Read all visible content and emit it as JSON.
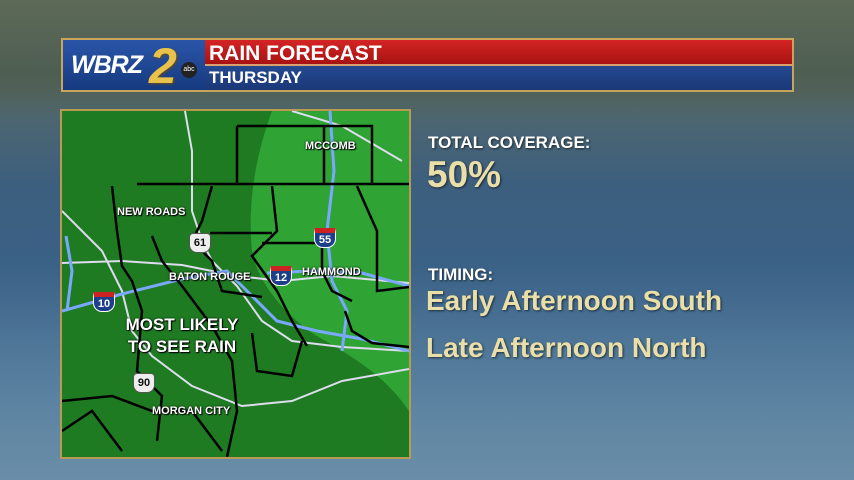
{
  "header": {
    "logo_text": "WBRZ",
    "logo_number": "2",
    "network": "abc",
    "title": "RAIN FORECAST",
    "subtitle": "THURSDAY"
  },
  "map": {
    "cities": [
      "MCCOMB",
      "NEW ROADS",
      "BATON ROUGE",
      "HAMMOND",
      "MORGAN CITY"
    ],
    "highways": {
      "i55": "55",
      "i12": "12",
      "i10": "10",
      "us61": "61",
      "us90": "90"
    },
    "annotation_line1": "MOST LIKELY",
    "annotation_line2": "TO SEE RAIN",
    "colors": {
      "base": "#1f7b22",
      "lighter_area": "#2fa334"
    }
  },
  "coverage": {
    "label": "TOTAL COVERAGE:",
    "value": "50%"
  },
  "timing": {
    "label": "TIMING:",
    "line1": "Early Afternoon South",
    "line2": "Late Afternoon North"
  }
}
